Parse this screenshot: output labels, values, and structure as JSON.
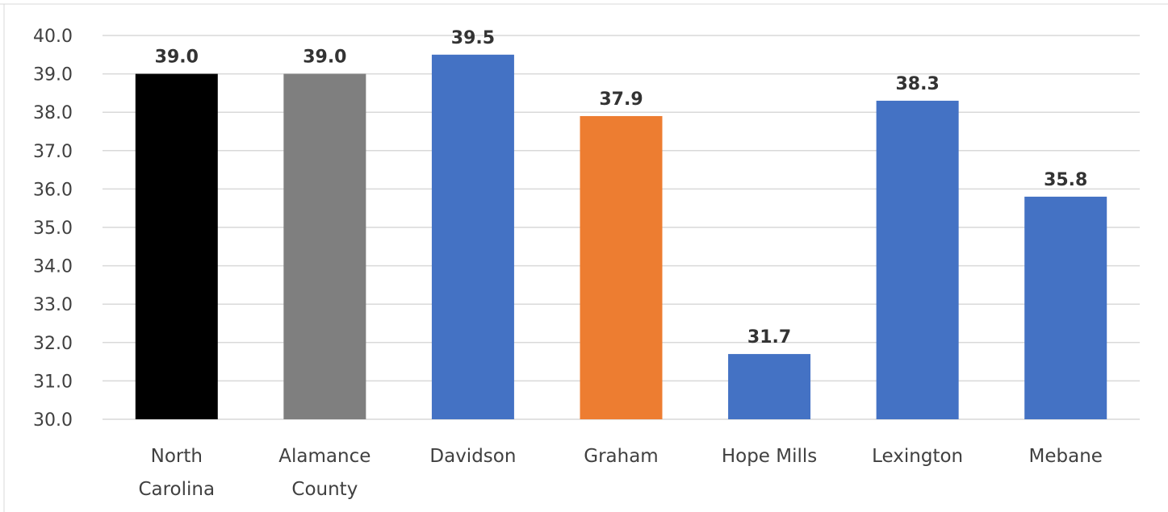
{
  "chart_data": {
    "type": "bar",
    "categories": [
      "North Carolina",
      "Alamance County",
      "Davidson",
      "Graham",
      "Hope Mills",
      "Lexington",
      "Mebane"
    ],
    "category_lines": [
      [
        "North",
        "Carolina"
      ],
      [
        "Alamance",
        "County"
      ],
      [
        "Davidson"
      ],
      [
        "Graham"
      ],
      [
        "Hope Mills"
      ],
      [
        "Lexington"
      ],
      [
        "Mebane"
      ]
    ],
    "values": [
      39.0,
      39.0,
      39.5,
      37.9,
      31.7,
      38.3,
      35.8
    ],
    "data_labels": [
      "39.0",
      "39.0",
      "39.5",
      "37.9",
      "31.7",
      "38.3",
      "35.8"
    ],
    "bar_colors": [
      "#000000",
      "#7f7f7f",
      "#4472c4",
      "#ed7d31",
      "#4472c4",
      "#4472c4",
      "#4472c4"
    ],
    "yticks": [
      "30.0",
      "31.0",
      "32.0",
      "33.0",
      "34.0",
      "35.0",
      "36.0",
      "37.0",
      "38.0",
      "39.0",
      "40.0"
    ],
    "ylim": [
      30,
      40
    ],
    "title": "",
    "xlabel": "",
    "ylabel": "",
    "grid": true,
    "legend": "none"
  }
}
